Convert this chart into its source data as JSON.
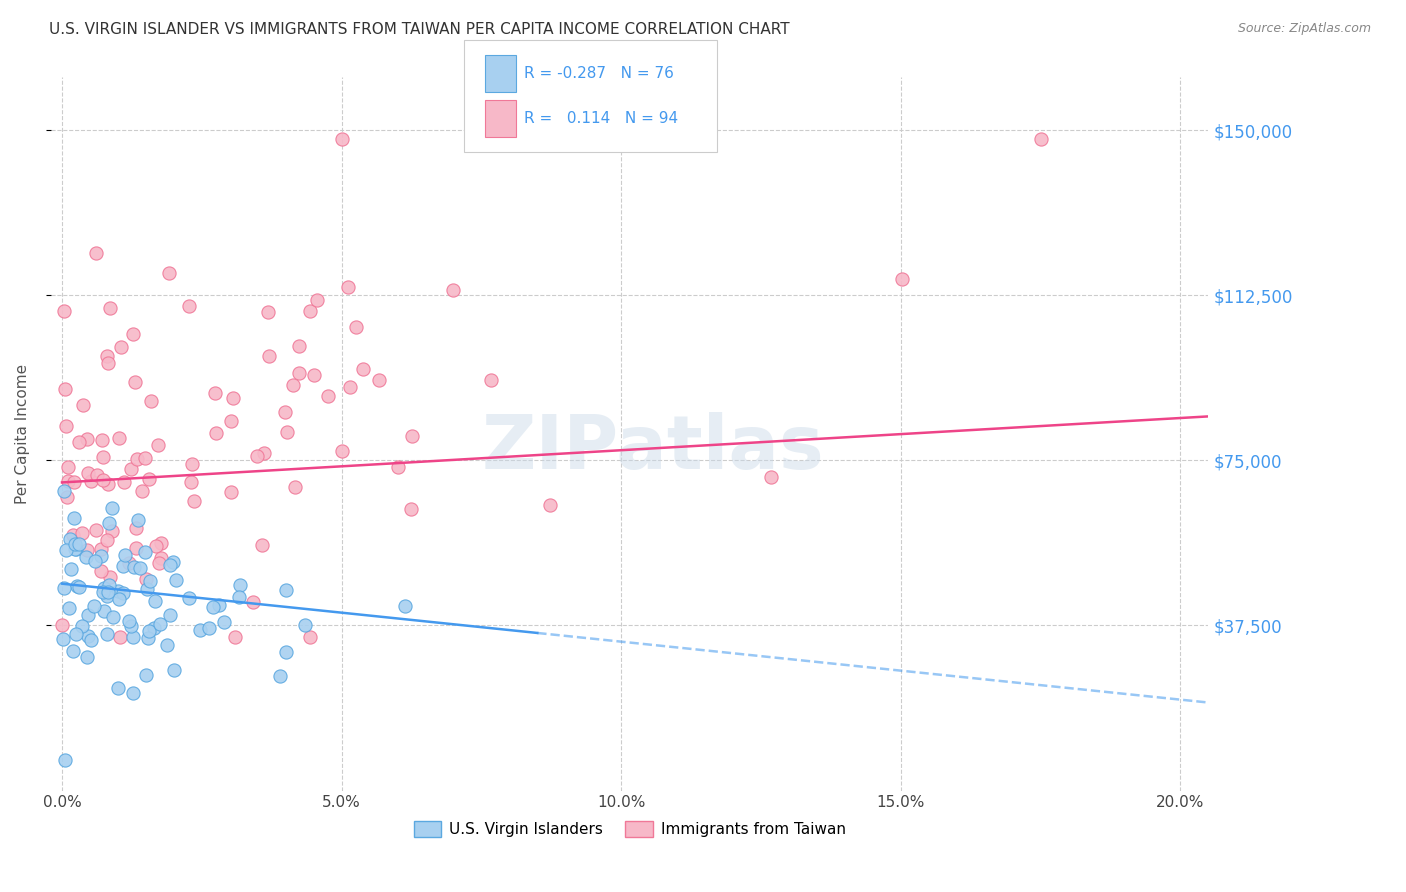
{
  "title": "U.S. VIRGIN ISLANDER VS IMMIGRANTS FROM TAIWAN PER CAPITA INCOME CORRELATION CHART",
  "source": "Source: ZipAtlas.com",
  "ylabel": "Per Capita Income",
  "xlabel_ticks": [
    "0.0%",
    "5.0%",
    "10.0%",
    "15.0%",
    "20.0%"
  ],
  "xlabel_tick_vals": [
    0.0,
    0.05,
    0.1,
    0.15,
    0.2
  ],
  "ytick_labels": [
    "$37,500",
    "$75,000",
    "$112,500",
    "$150,000"
  ],
  "ytick_vals": [
    37500,
    75000,
    112500,
    150000
  ],
  "ylim": [
    0,
    162000
  ],
  "xlim": [
    -0.002,
    0.205
  ],
  "blue_fill": "#a8d0f0",
  "pink_fill": "#f7b8c8",
  "blue_edge": "#5ba8e0",
  "pink_edge": "#f07898",
  "blue_line_color": "#4499ee",
  "pink_line_color": "#ee4488",
  "right_axis_color": "#4499ee",
  "blue_r": -0.287,
  "blue_n": 76,
  "pink_r": 0.114,
  "pink_n": 94,
  "watermark": "ZIPatlas",
  "legend_labels": [
    "U.S. Virgin Islanders",
    "Immigrants from Taiwan"
  ],
  "background_color": "#ffffff",
  "grid_color": "#cccccc",
  "title_color": "#333333",
  "source_color": "#888888",
  "legend_text_color": "#4499ee"
}
